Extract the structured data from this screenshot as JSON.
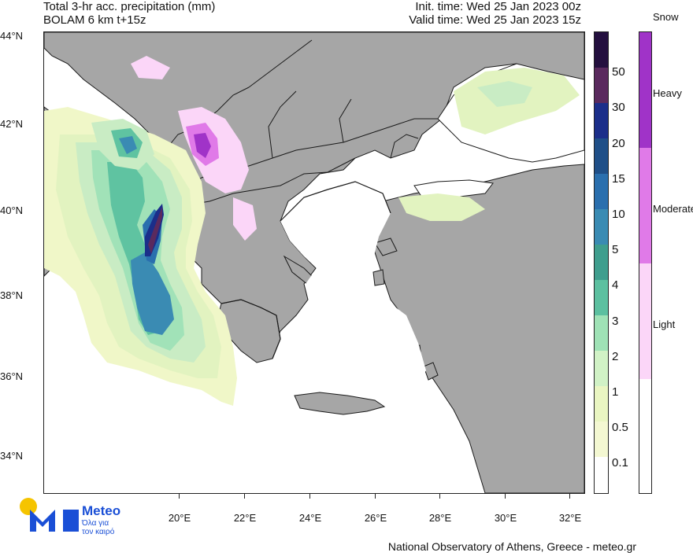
{
  "header": {
    "title_line1": "Total 3-hr acc. precipitation (mm)",
    "title_line2": "BOLAM 6 km t+15z",
    "init_time": "Init. time: Wed 25 Jan 2023 00z",
    "valid_time": "Valid time: Wed 25 Jan 2023 15z"
  },
  "axes": {
    "lat_labels": [
      "44°N",
      "42°N",
      "40°N",
      "38°N",
      "36°N",
      "34°N"
    ],
    "lon_labels": [
      "20°E",
      "22°E",
      "24°E",
      "26°E",
      "28°E",
      "30°E",
      "32°E"
    ]
  },
  "precip_legend": {
    "labels": [
      "50",
      "30",
      "20",
      "15",
      "10",
      "5",
      "4",
      "3",
      "2",
      "1",
      "0.5",
      "0.1"
    ],
    "colors": [
      "#24103f",
      "#5a2a5e",
      "#1b2e8a",
      "#1f4f88",
      "#2a6fae",
      "#3a8bb3",
      "#3f9e8e",
      "#5cc0a0",
      "#9fe2b6",
      "#d1f2c6",
      "#eaf6c2",
      "#f4f8d2",
      "#ffffff"
    ]
  },
  "snow_legend": {
    "title": "Snow",
    "labels": [
      "Heavy",
      "Moderate",
      "Light"
    ],
    "colors": [
      "#a033c8",
      "#e07ae8",
      "#fbd6f8",
      "#ffffff"
    ]
  },
  "map_colors": {
    "sea": "#ffffff",
    "land": "#a6a6a6",
    "border": "#1a1a1a"
  },
  "logo": {
    "name": "Meteo",
    "tagline_line1": "Όλα για",
    "tagline_line2": "τον καιρό",
    "sun_color": "#f5c400",
    "m_color": "#1a4fd6"
  },
  "footer": {
    "credit": "National Observatory of Athens, Greece - meteo.gr"
  }
}
